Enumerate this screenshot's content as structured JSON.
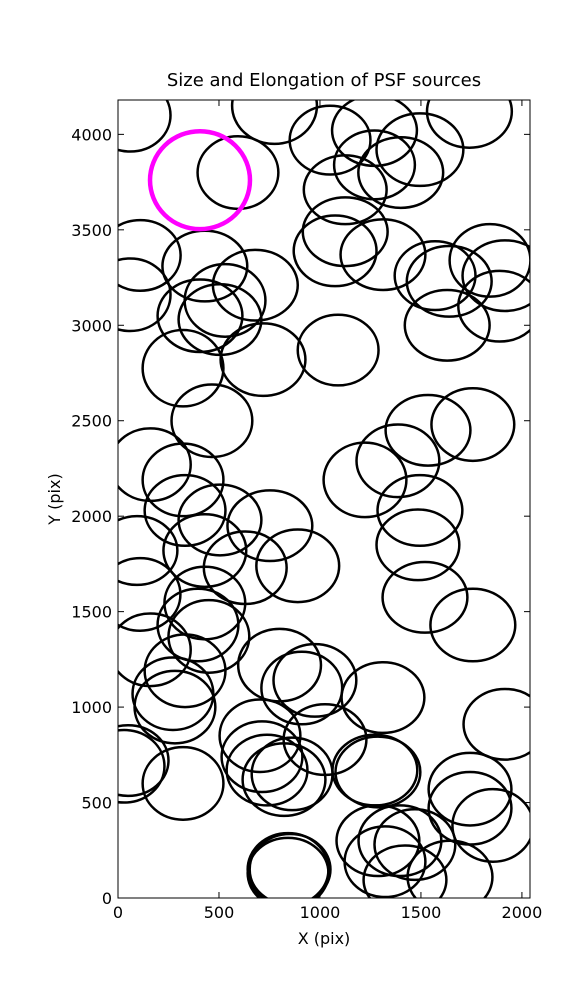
{
  "chart_data": {
    "type": "ellipse",
    "title": "Size and Elongation of PSF sources",
    "x_label": "X (pix)",
    "y_label": "Y (pix)",
    "xlim": [
      0,
      2040
    ],
    "ylim": [
      0,
      4180
    ],
    "xticks": [
      0,
      500,
      1000,
      1500,
      2000
    ],
    "yticks": [
      0,
      500,
      1000,
      1500,
      2000,
      2500,
      3000,
      3500,
      4000
    ],
    "color": "#000000",
    "ellipses": {
      "x": [
        60,
        775,
        1050,
        1270,
        1495,
        1740,
        1270,
        1400,
        1125,
        594,
        1125,
        1075,
        1312,
        110,
        430,
        680,
        1570,
        1640,
        1842,
        1916,
        1890,
        1630,
        60,
        406,
        530,
        505,
        1090,
        718,
        322,
        465,
        160,
        322,
        1386,
        1535,
        1757,
        1223,
        1495,
        1485,
        1520,
        1757,
        332,
        505,
        752,
        430,
        94,
        630,
        890,
        109,
        430,
        396,
        450,
        160,
        332,
        800,
        975,
        910,
        1312,
        272,
        282,
        1916,
        1025,
        703,
        713,
        738,
        822,
        862,
        1272,
        1287,
        50,
        30,
        322,
        1743,
        1743,
        1856,
        1287,
        1396,
        1470,
        1322,
        1421,
        1644,
        842,
        842,
        852
      ],
      "y": [
        4100,
        4150,
        3970,
        4020,
        3920,
        4120,
        3840,
        3800,
        3710,
        3800,
        3490,
        3390,
        3370,
        3366,
        3310,
        3210,
        3260,
        3230,
        3340,
        3260,
        3100,
        3000,
        3160,
        3050,
        3130,
        3030,
        2870,
        2820,
        2775,
        2500,
        2270,
        2190,
        2290,
        2450,
        2480,
        2190,
        2030,
        1850,
        1575,
        1430,
        2030,
        1980,
        1950,
        1820,
        1820,
        1730,
        1740,
        1590,
        1545,
        1430,
        1370,
        1300,
        1190,
        1220,
        1140,
        1100,
        1050,
        1070,
        1000,
        910,
        830,
        850,
        740,
        670,
        620,
        650,
        670,
        660,
        720,
        690,
        600,
        570,
        470,
        380,
        300,
        300,
        280,
        190,
        95,
        110,
        150,
        130,
        150
      ],
      "width": [
        400,
        420,
        400,
        420,
        430,
        420,
        400,
        420,
        410,
        400,
        420,
        410,
        420,
        400,
        420,
        420,
        400,
        420,
        400,
        420,
        410,
        420,
        400,
        420,
        400,
        410,
        400,
        420,
        400,
        400,
        400,
        400,
        410,
        420,
        410,
        410,
        420,
        410,
        420,
        420,
        400,
        410,
        420,
        410,
        400,
        410,
        410,
        400,
        400,
        400,
        400,
        400,
        400,
        410,
        410,
        400,
        410,
        400,
        400,
        410,
        410,
        400,
        400,
        400,
        410,
        400,
        420,
        420,
        400,
        400,
        400,
        410,
        410,
        400,
        410,
        410,
        400,
        400,
        410,
        420,
        400,
        400,
        400
      ],
      "height": [
        380,
        400,
        360,
        370,
        380,
        380,
        360,
        370,
        360,
        380,
        360,
        370,
        370,
        370,
        370,
        370,
        360,
        370,
        380,
        370,
        370,
        370,
        380,
        380,
        380,
        370,
        370,
        380,
        400,
        380,
        380,
        380,
        380,
        370,
        380,
        390,
        370,
        370,
        370,
        380,
        370,
        370,
        370,
        380,
        360,
        380,
        380,
        380,
        380,
        380,
        380,
        380,
        380,
        380,
        380,
        380,
        370,
        380,
        380,
        370,
        370,
        380,
        370,
        370,
        380,
        380,
        370,
        370,
        370,
        380,
        380,
        380,
        380,
        380,
        370,
        370,
        370,
        370,
        360,
        380,
        380,
        370,
        370
      ]
    },
    "reference": {
      "x": 406,
      "y": 3760,
      "width": 495,
      "height": 513,
      "color": "#ff00ff"
    }
  }
}
